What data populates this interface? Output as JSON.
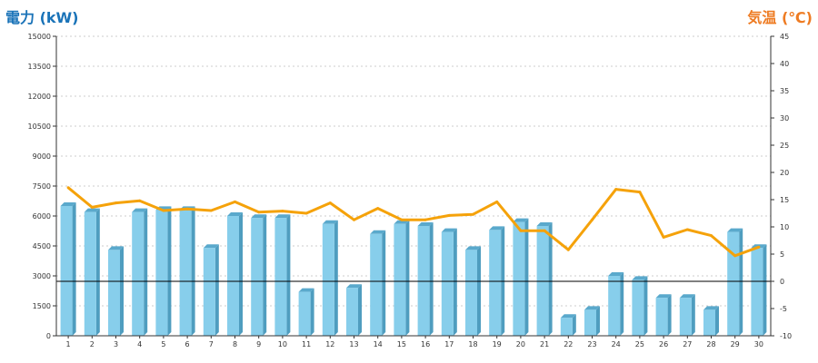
{
  "chart_data": {
    "type": "bar",
    "left_axis_title": "電力 (kW)",
    "right_axis_title": "気温 (℃)",
    "colors": {
      "left_title": "#1a73b8",
      "right_title": "#ee7b22",
      "bar_front": "#87ceeb",
      "bar_side": "#4f9dbf",
      "bar_top": "#5aa9cc",
      "line": "#f5a20a",
      "grid": "#cccccc"
    },
    "categories": [
      "1",
      "2",
      "3",
      "4",
      "5",
      "6",
      "7",
      "8",
      "9",
      "10",
      "11",
      "12",
      "13",
      "14",
      "15",
      "16",
      "17",
      "18",
      "19",
      "20",
      "21",
      "22",
      "23",
      "24",
      "25",
      "26",
      "27",
      "28",
      "29",
      "30"
    ],
    "series": [
      {
        "type": "bar",
        "axis": "left",
        "values": [
          6500,
          6200,
          4300,
          6200,
          6300,
          6300,
          4400,
          6000,
          5900,
          5900,
          2200,
          5600,
          2400,
          5100,
          5600,
          5500,
          5200,
          4300,
          5300,
          5700,
          5500,
          900,
          1300,
          3000,
          2800,
          1900,
          1900,
          1300,
          5200,
          4400
        ]
      },
      {
        "type": "line",
        "axis": "right",
        "values": [
          17.2,
          13.6,
          14.4,
          14.8,
          13.0,
          13.3,
          13.0,
          14.6,
          12.7,
          12.9,
          12.5,
          14.4,
          11.3,
          13.4,
          11.3,
          11.3,
          12.1,
          12.3,
          14.6,
          9.3,
          9.3,
          5.8,
          11.3,
          16.9,
          16.4,
          8.1,
          9.5,
          8.4,
          4.7,
          6.3
        ]
      }
    ],
    "left_axis": {
      "min": 0,
      "max": 15000,
      "ticks": [
        "0",
        "1500",
        "3000",
        "4500",
        "6000",
        "7500",
        "9000",
        "10500",
        "12000",
        "13500",
        "15000"
      ]
    },
    "right_axis": {
      "min": -10,
      "max": 45,
      "ticks": [
        "-10",
        "-5",
        "0",
        "5",
        "10",
        "15",
        "20",
        "25",
        "30",
        "35",
        "40",
        "45"
      ]
    },
    "grid": true,
    "zero_line": true
  }
}
